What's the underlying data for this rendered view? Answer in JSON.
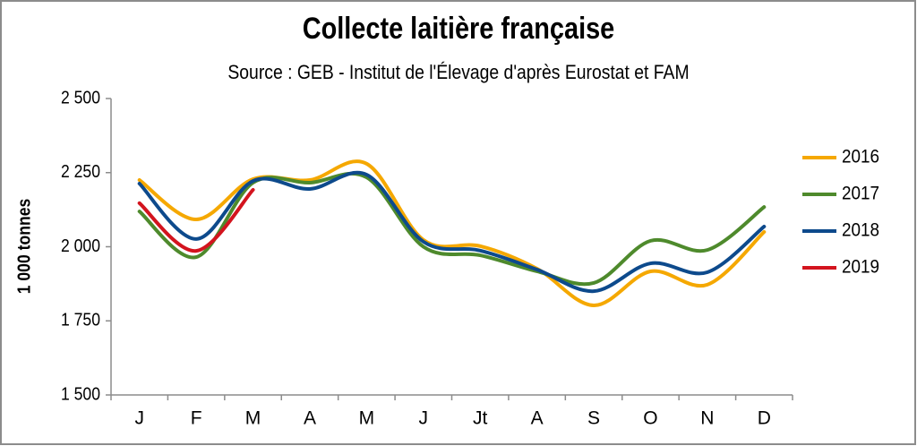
{
  "chart_data": {
    "type": "line",
    "title": "Collecte laitière française",
    "subtitle": "Source : GEB - Institut de l'Élevage d'après Eurostat et FAM",
    "y_label": "1 000 tonnes",
    "categories": [
      "J",
      "F",
      "M",
      "A",
      "M",
      "J",
      "Jt",
      "A",
      "S",
      "O",
      "N",
      "D"
    ],
    "series": [
      {
        "name": "2016",
        "color": "#f5a800",
        "values": [
          2225,
          2092,
          2228,
          2225,
          2280,
          2023,
          2002,
          1926,
          1802,
          1917,
          1872,
          2050
        ]
      },
      {
        "name": "2017",
        "color": "#4e8a2c",
        "values": [
          2119,
          1965,
          2216,
          2216,
          2234,
          2000,
          1971,
          1917,
          1878,
          2020,
          1989,
          2134
        ]
      },
      {
        "name": "2018",
        "color": "#0d4a8c",
        "values": [
          2213,
          2026,
          2222,
          2195,
          2243,
          2017,
          1987,
          1923,
          1850,
          1944,
          1914,
          2068
        ]
      },
      {
        "name": "2019",
        "color": "#d3141e",
        "values": [
          2147,
          1986,
          2192,
          null,
          null,
          null,
          null,
          null,
          null,
          null,
          null,
          null
        ]
      }
    ],
    "ylim": [
      1500,
      2500
    ],
    "yticks": [
      {
        "value": 1500,
        "label": "1 500"
      },
      {
        "value": 1750,
        "label": "1 750"
      },
      {
        "value": 2000,
        "label": "2 000"
      },
      {
        "value": 2250,
        "label": "2 250"
      },
      {
        "value": 2500,
        "label": "2 500"
      }
    ],
    "grid": false,
    "legend": "right"
  }
}
